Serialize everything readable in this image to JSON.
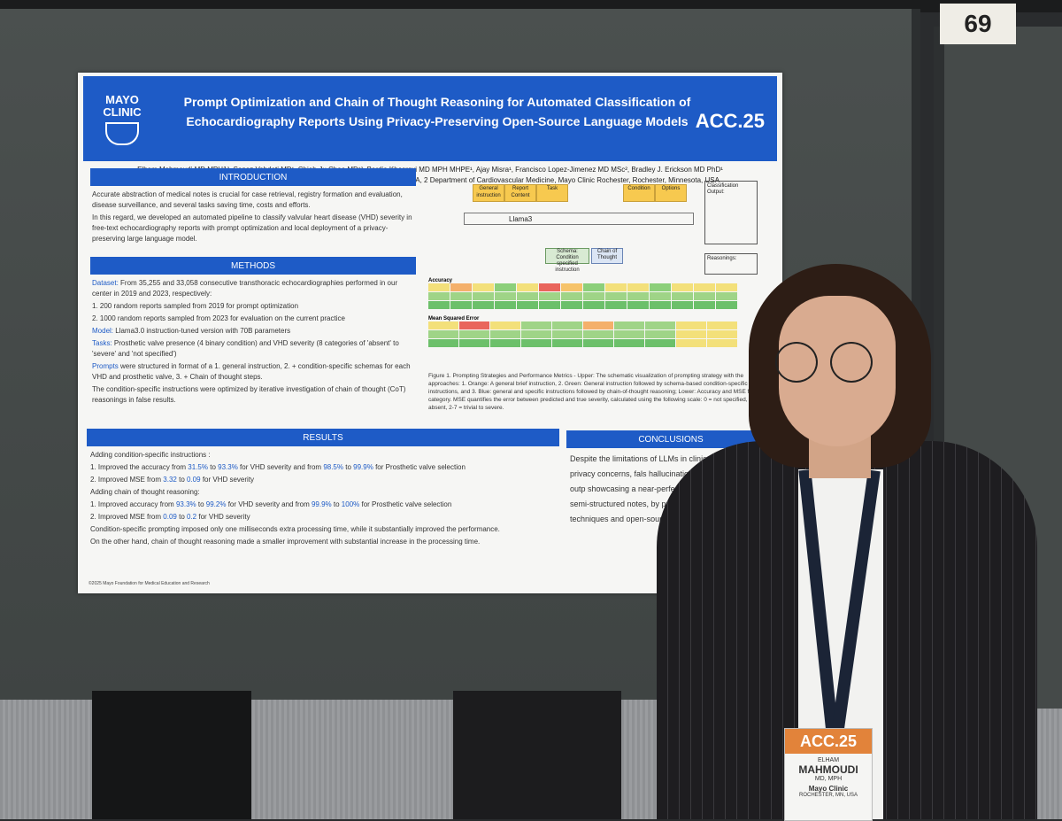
{
  "booth_number": "69",
  "poster": {
    "logo_line1": "MAYO",
    "logo_line2": "CLINIC",
    "title_line1": "Prompt Optimization and Chain of Thought Reasoning for Automated Classification of",
    "title_line2": "Echocardiography Reports Using Privacy-Preserving Open-Source Language Models",
    "conference": "ACC.25",
    "authors": "Elham Mahmoudi MD MPH1², Sanaz Vahdati MD¹, Chieh-Ju Chao MD¹², Bardia Khosravi MD MPH MHPE¹, Ajay Misra¹, Francisco Lopez-Jimenez MD MSc², Bradley J. Erickson MD PhD¹",
    "affiliations": "1 Department of Radiology, Radiology Informatics Lab, Mayo Clinic, Rochester, MN, USA, 2 Department of Cardiovascular Medicine, Mayo Clinic Rochester, Rochester, Minnesota, USA",
    "introduction": {
      "heading": "INTRODUCTION",
      "p1": "Accurate abstraction of medical notes is crucial for case retrieval, registry formation and evaluation, disease surveillance, and several tasks saving time, costs and efforts.",
      "p2": "In this regard, we developed an automated pipeline to classify valvular heart disease (VHD) severity in free-text echocardiography reports with prompt optimization and local deployment of a privacy-preserving large language model."
    },
    "methods": {
      "heading": "METHODS",
      "dataset_label": "Dataset:",
      "dataset_text": "From 35,255 and 33,058 consecutive transthoracic echocardiographies performed in our center in 2019 and 2023, respectively:",
      "item1": "200 random reports sampled from 2019 for prompt optimization",
      "item2": "1000 random reports sampled from 2023 for evaluation on the current practice",
      "model_label": "Model:",
      "model_text": "Llama3.0 instruction-tuned version with 70B parameters",
      "tasks_label": "Tasks:",
      "tasks_text": "Prosthetic valve presence (4 binary condition) and VHD severity (8 categories of 'absent' to 'severe' and 'not specified')",
      "prompts_label": "Prompts",
      "prompts_text": "were structured in format of a 1. general instruction, 2. + condition-specific schemas for each VHD and prosthetic valve, 3. + Chain of thought steps.",
      "optimization": "The condition-specific instructions were optimized by iterative investigation of chain of thought (CoT) reasonings in false results."
    },
    "figure": {
      "general_instruction": "General instruction",
      "report_content": "Report Content",
      "task": "Task",
      "condition": "Condition",
      "options": "Options",
      "model": "Llama3",
      "schema": "Schema: Condition specified instruction",
      "cot": "Chain of Thought",
      "classification_output": "Classification Output:",
      "reasonings": "Reasonings:",
      "accuracy_label": "Accuracy",
      "mse_label": "Mean Squared Error",
      "caption": "Figure 1. Prompting Strategies and Performance Metrics - Upper: The schematic visualization of prompting strategy with the approaches: 1. Orange: A general brief instruction, 2. Green: General instruction followed by schema-based condition-specific instructions, and 3. Blue: general and specific instructions followed by chain-of-thought reasoning; Lower: Accuracy and MSE for each category. MSE quantifies the error between predicted and true severity, calculated using the following scale: 0 = not specified, 1 = absent, 2-7 = trivial to severe."
    },
    "results": {
      "heading": "RESULTS",
      "sub1": "Adding condition-specific instructions :",
      "r1_pre": "Improved the accuracy from",
      "r1_a": "31.5%",
      "r1_to": "to",
      "r1_b": "93.3%",
      "r1_mid": "for VHD severity and from",
      "r1_c": "98.5%",
      "r1_d": "99.9%",
      "r1_end": "for Prosthetic valve selection",
      "r2_pre": "Improved MSE from",
      "r2_a": "3.32",
      "r2_b": "0.09",
      "r2_end": "for VHD severity",
      "sub2": "Adding chain of thought reasoning:",
      "r3_pre": "Improved accuracy from",
      "r3_a": "93.3%",
      "r3_b": "99.2%",
      "r3_mid": "for VHD severity and from",
      "r3_c": "99.9%",
      "r3_d": "100%",
      "r3_end": "for Prosthetic valve selection",
      "r4_pre": "Improved MSE from",
      "r4_a": "0.09",
      "r4_b": "0.2",
      "r4_end": "for VHD severity",
      "p1": "Condition-specific prompting imposed only one milliseconds extra processing time, while it substantially improved the performance.",
      "p2": "On the other hand, chain of thought reasoning made a smaller improvement with substantial increase in the processing time."
    },
    "conclusions": {
      "heading": "CONCLUSIONS",
      "text": "Despite the limitations of LLMs in clinical note a including privacy concerns, fals hallucinations, and unstructured outp showcasing a near-perfect perfo extraction from semi-structured notes, by proper application of techniques and open-source LLMs"
    },
    "footer": "©2025 Mayo Foundation for Medical Education and Research"
  },
  "name_badge": {
    "conference": "ACC.25",
    "first_name": "ELHAM",
    "last_name": "MAHMOUDI",
    "credentials": "MD, MPH",
    "org": "Mayo Clinic",
    "location": "ROCHESTER, MN, USA"
  },
  "colors": {
    "banner_blue": "#1e5bc6",
    "orange": "#f7c94f",
    "green": "#d8ead3",
    "blue_box": "#dbe5f4"
  }
}
